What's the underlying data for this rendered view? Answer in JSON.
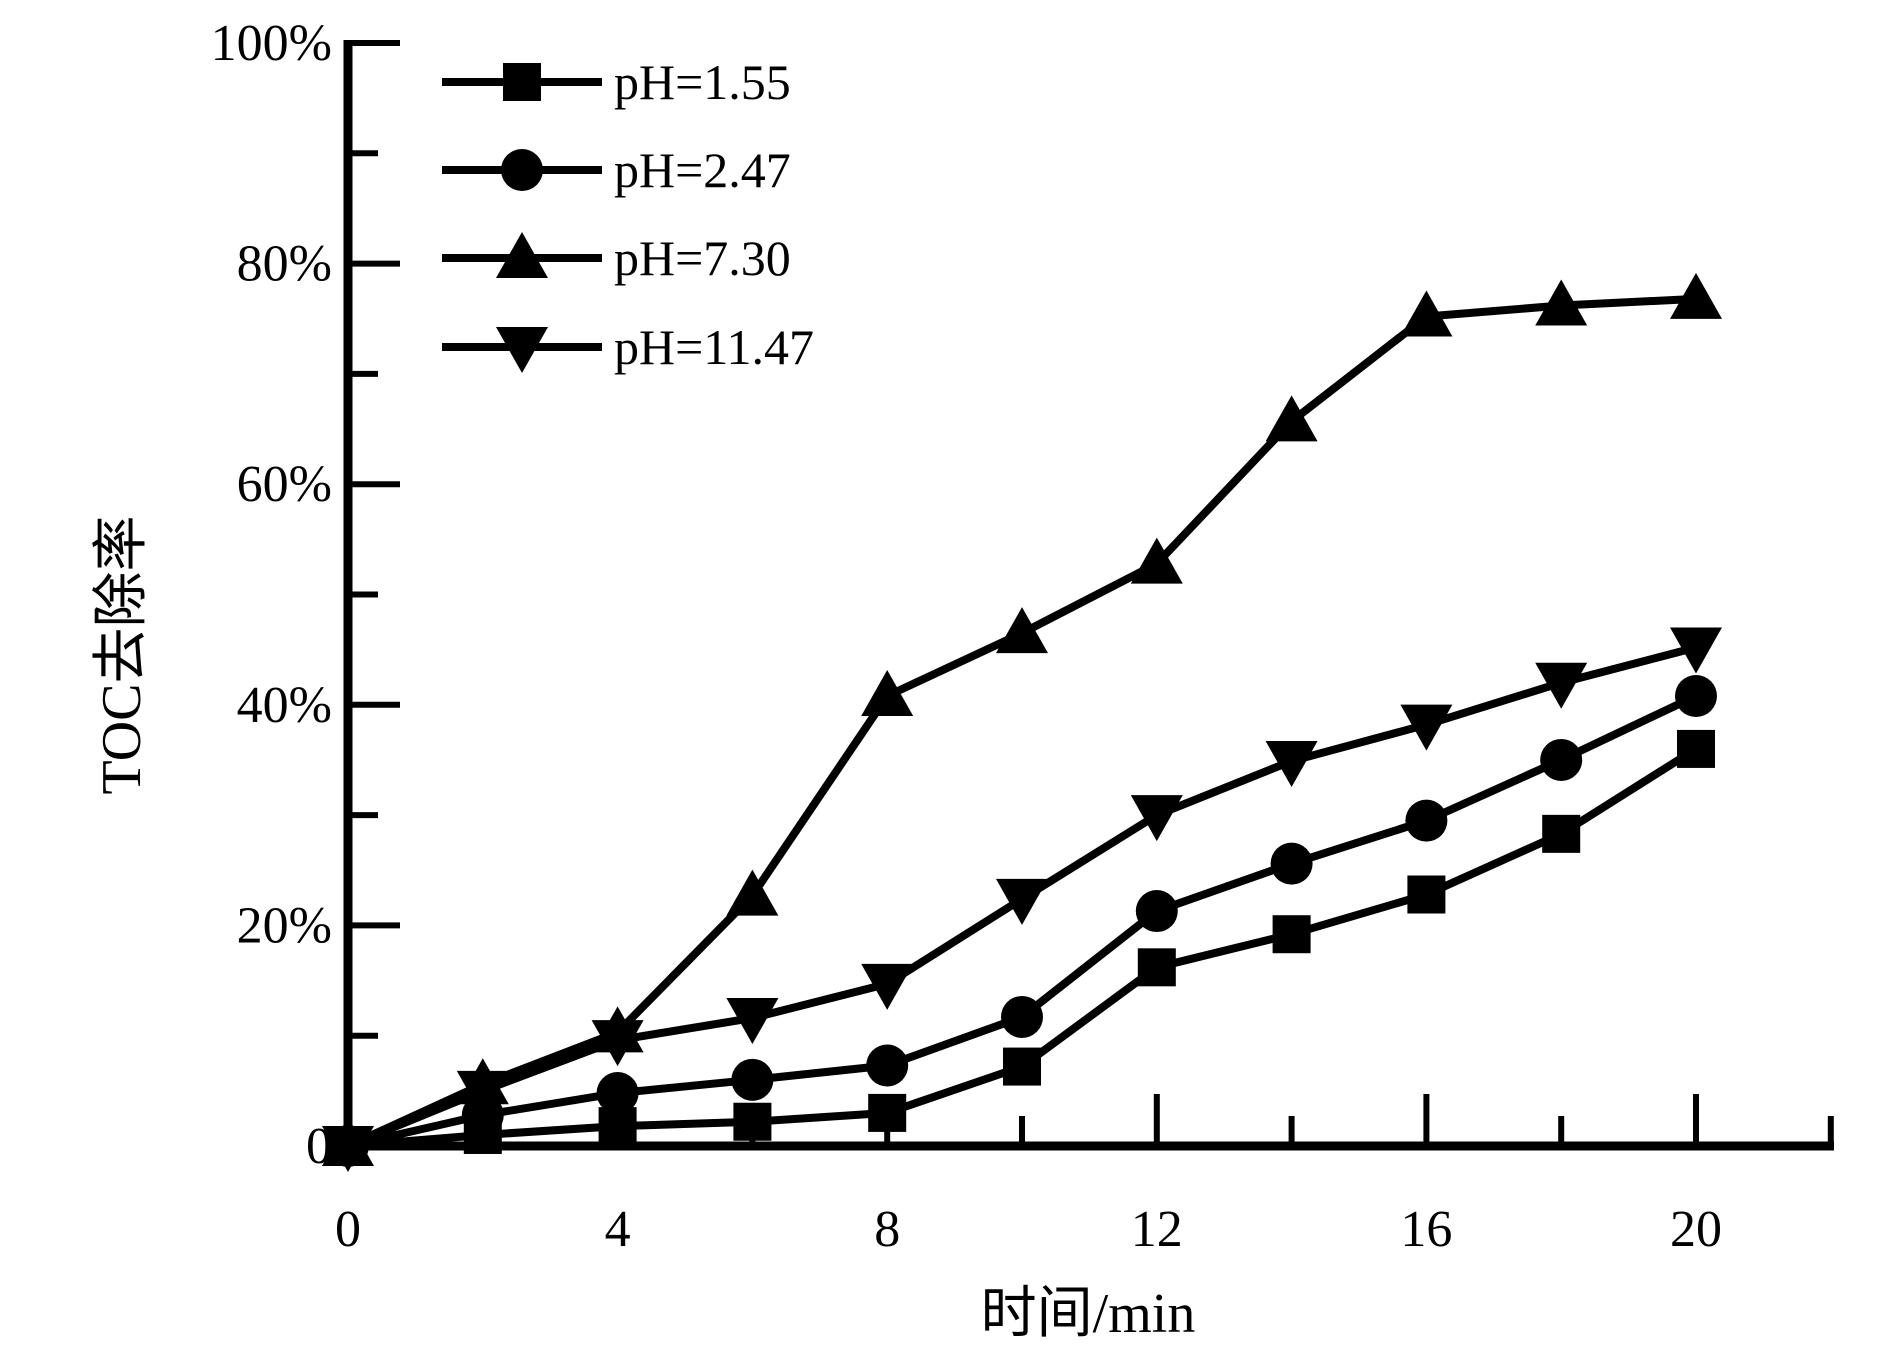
{
  "colors": {
    "foreground": "#000000",
    "background": "#ffffff"
  },
  "chart_data": {
    "type": "line",
    "title": "",
    "xlabel": "时间/min",
    "ylabel": "TOC去除率",
    "grid": false,
    "legend_position": "top-left-inside",
    "x": [
      0,
      2,
      4,
      6,
      8,
      10,
      12,
      14,
      16,
      18,
      20
    ],
    "series": [
      {
        "name": "pH=1.55",
        "marker": "square",
        "values": [
          0,
          1.0,
          1.8,
          2.2,
          3.0,
          7.2,
          16.2,
          19.2,
          22.8,
          28.3,
          36.0
        ]
      },
      {
        "name": "pH=2.47",
        "marker": "circle",
        "values": [
          0,
          2.8,
          4.8,
          6.0,
          7.3,
          11.7,
          21.3,
          25.6,
          29.5,
          35.0,
          40.8
        ]
      },
      {
        "name": "pH=7.30",
        "marker": "triangle-up",
        "values": [
          0,
          5.6,
          10.3,
          22.7,
          40.8,
          46.5,
          52.8,
          65.7,
          75.2,
          76.2,
          76.8
        ]
      },
      {
        "name": "pH=11.47",
        "marker": "triangle-down",
        "values": [
          0,
          5.0,
          9.6,
          11.6,
          14.7,
          22.4,
          30.0,
          34.9,
          38.2,
          42.0,
          45.2
        ]
      }
    ],
    "x_axis": {
      "range": [
        0,
        22
      ],
      "major_ticks": [
        0,
        4,
        8,
        12,
        16,
        20
      ],
      "minor_ticks": [
        2,
        6,
        10,
        14,
        18,
        22
      ],
      "tick_labels": [
        "0",
        "4",
        "8",
        "12",
        "16",
        "20"
      ]
    },
    "y_axis": {
      "range": [
        0,
        100
      ],
      "major_ticks": [
        0,
        20,
        40,
        60,
        80,
        100
      ],
      "minor_ticks": [
        10,
        30,
        50,
        70,
        90
      ],
      "tick_labels": [
        "0",
        "20%",
        "40%",
        "60%",
        "80%",
        "100%"
      ]
    }
  }
}
